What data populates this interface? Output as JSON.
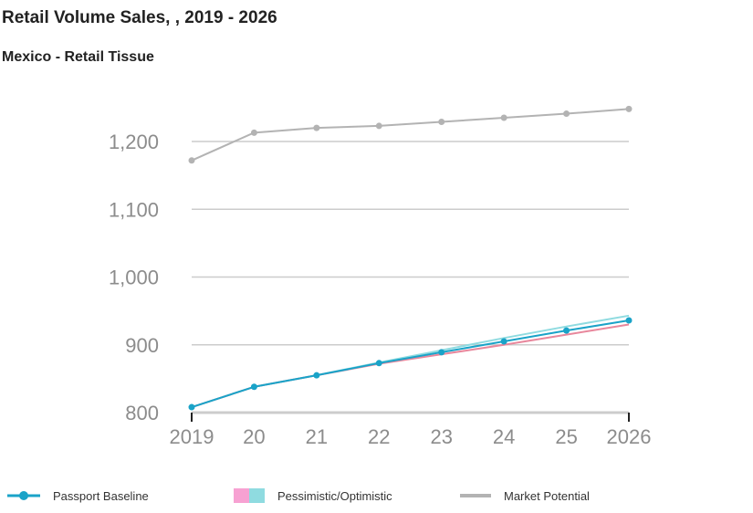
{
  "title": "Retail Volume Sales, , 2019 - 2026",
  "subtitle": "Mexico - Retail Tissue",
  "colors": {
    "baseline": "#1aa3c8",
    "pessimistic": "#e8879c",
    "optimistic": "#8fdbe0",
    "market": "#b3b3b3",
    "grid": "#cccccc",
    "axis_text": "#8c8c8c",
    "axis_line": "#222222"
  },
  "legend": {
    "baseline_label": "Passport Baseline",
    "scenario_label": "Pessimistic/Optimistic",
    "market_label": "Market Potential",
    "scenario_swatch_colors": [
      "#f7a1d2",
      "#8fdbe0"
    ]
  },
  "chart_data": {
    "type": "line",
    "x": [
      2019,
      2020,
      2021,
      2022,
      2023,
      2024,
      2025,
      2026
    ],
    "x_tick_labels": [
      "2019",
      "20",
      "21",
      "22",
      "23",
      "24",
      "25",
      "2026"
    ],
    "y_ticks": [
      800,
      900,
      1000,
      1100,
      1200
    ],
    "y_tick_labels": [
      "800",
      "900",
      "1,000",
      "1,100",
      "1,200"
    ],
    "ylim": [
      800,
      1200
    ],
    "grid": true,
    "legend_position": "bottom",
    "series": [
      {
        "name": "Market Potential",
        "values": [
          1172,
          1213,
          1220,
          1223,
          1229,
          1235,
          1241,
          1248
        ]
      },
      {
        "name": "Passport Baseline",
        "values": [
          808,
          838,
          855,
          873,
          889,
          905,
          921,
          936
        ]
      },
      {
        "name": "Pessimistic",
        "values": [
          808,
          838,
          855,
          872,
          886,
          900,
          915,
          930
        ]
      },
      {
        "name": "Optimistic",
        "values": [
          808,
          838,
          855,
          874,
          892,
          910,
          927,
          943
        ]
      }
    ]
  }
}
